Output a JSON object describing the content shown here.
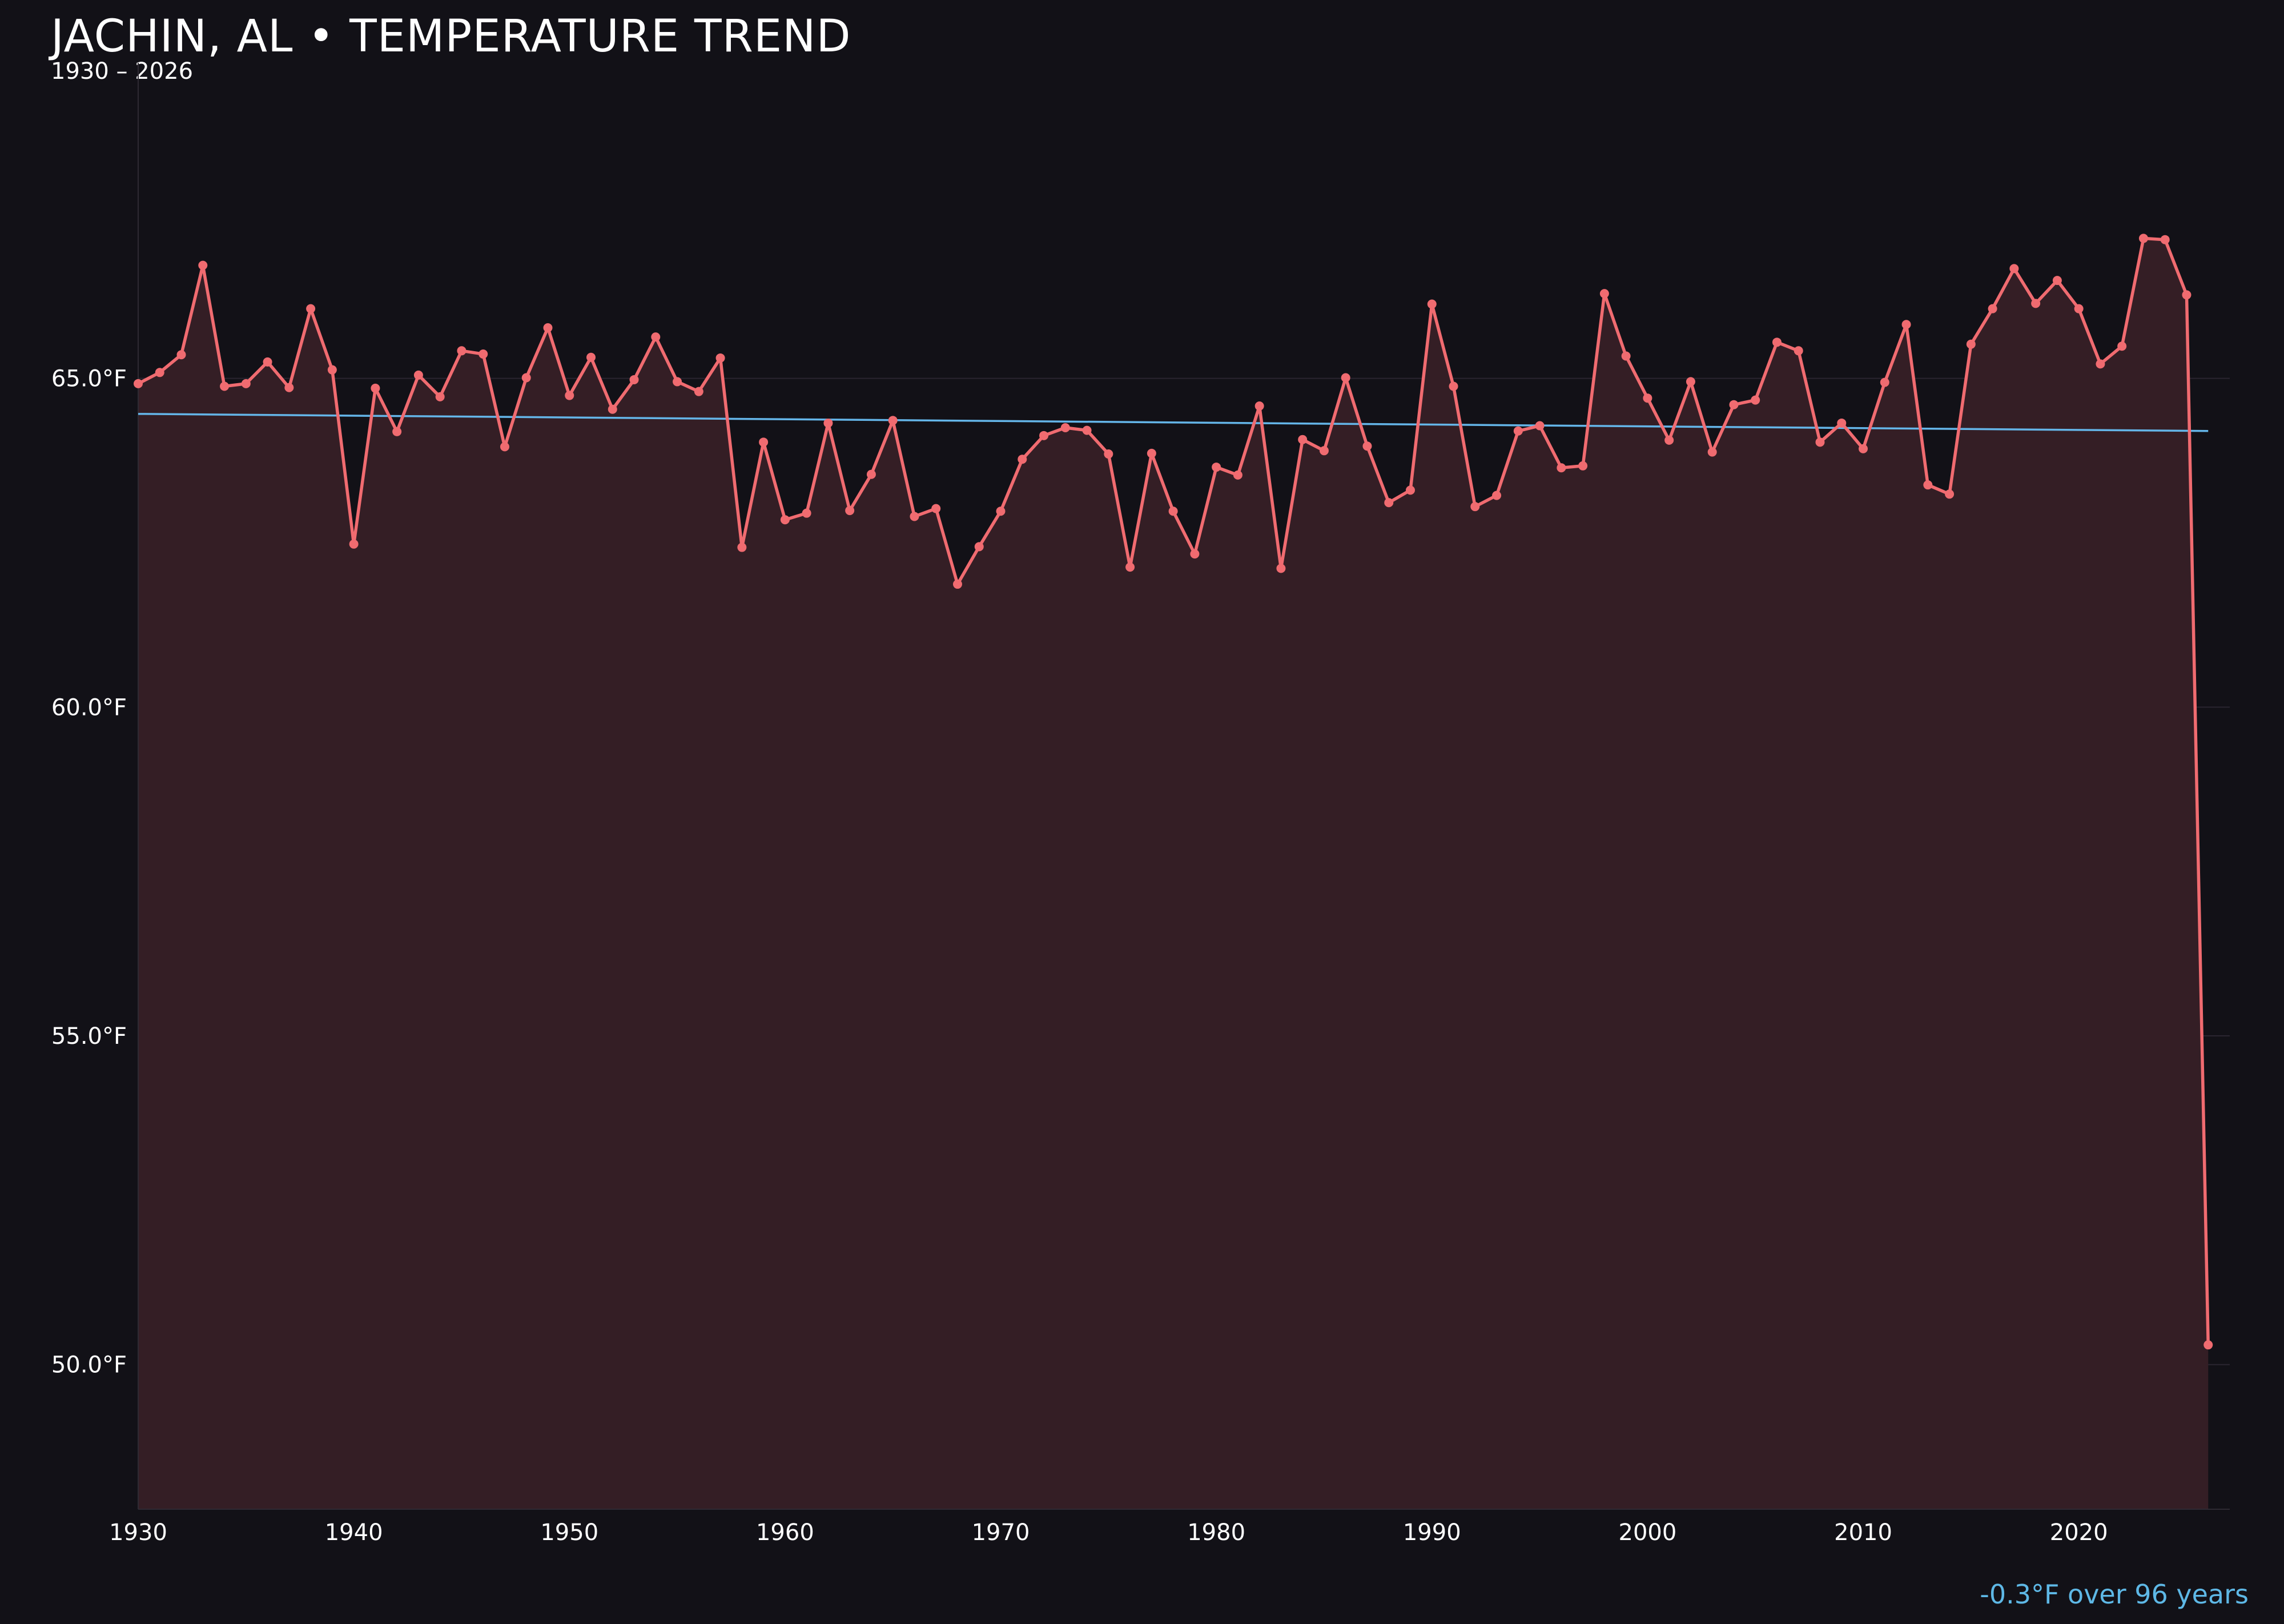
{
  "header": {
    "title": "JACHIN, AL • TEMPERATURE TREND",
    "subtitle": "1930 – 2026"
  },
  "footer": {
    "trend_note": "-0.3°F over 96 years"
  },
  "colors": {
    "background": "#121117",
    "series_line": "#f06b70",
    "series_fill": "#341e25",
    "trend_line": "#64b5e8",
    "trend_text": "#5eb8e6",
    "grid": "#2a2530"
  },
  "chart_data": {
    "type": "line",
    "xlim": [
      1930,
      2027
    ],
    "ylim": [
      47.8,
      69.8
    ],
    "x_ticks": [
      1930,
      1940,
      1950,
      1960,
      1970,
      1980,
      1990,
      2000,
      2010,
      2020
    ],
    "x_tick_labels": [
      "1930",
      "1940",
      "1950",
      "1960",
      "1970",
      "1980",
      "1990",
      "2000",
      "2010",
      "2020"
    ],
    "y_ticks": [
      50,
      55,
      60,
      65
    ],
    "y_tick_labels": [
      "50.0°F",
      "55.0°F",
      "60.0°F",
      "65.0°F"
    ],
    "grid": true,
    "x": [
      1930,
      1931,
      1932,
      1933,
      1934,
      1935,
      1936,
      1937,
      1938,
      1939,
      1940,
      1941,
      1942,
      1943,
      1944,
      1945,
      1946,
      1947,
      1948,
      1949,
      1950,
      1951,
      1952,
      1953,
      1954,
      1955,
      1956,
      1957,
      1958,
      1959,
      1960,
      1961,
      1962,
      1963,
      1964,
      1965,
      1966,
      1967,
      1968,
      1969,
      1970,
      1971,
      1972,
      1973,
      1974,
      1975,
      1976,
      1977,
      1978,
      1979,
      1980,
      1981,
      1982,
      1983,
      1984,
      1985,
      1986,
      1987,
      1988,
      1989,
      1990,
      1991,
      1992,
      1993,
      1994,
      1995,
      1996,
      1997,
      1998,
      1999,
      2000,
      2001,
      2002,
      2003,
      2004,
      2005,
      2006,
      2007,
      2008,
      2009,
      2010,
      2011,
      2012,
      2013,
      2014,
      2015,
      2016,
      2017,
      2018,
      2019,
      2020,
      2021,
      2022,
      2023,
      2024,
      2025,
      2026
    ],
    "series": [
      {
        "values": [
          64.92,
          65.09,
          65.36,
          66.72,
          64.88,
          64.92,
          65.25,
          64.86,
          66.06,
          65.13,
          62.48,
          64.85,
          64.19,
          65.05,
          64.72,
          65.42,
          65.37,
          63.96,
          65.01,
          65.77,
          64.74,
          65.32,
          64.53,
          64.98,
          65.63,
          64.95,
          64.8,
          65.31,
          62.43,
          64.03,
          62.85,
          62.95,
          64.32,
          62.99,
          63.54,
          64.36,
          62.9,
          63.02,
          61.87,
          62.44,
          62.98,
          63.77,
          64.13,
          64.25,
          64.21,
          63.85,
          62.13,
          63.86,
          62.98,
          62.33,
          63.65,
          63.53,
          64.58,
          62.11,
          64.07,
          63.9,
          65.01,
          63.97,
          63.11,
          63.3,
          66.13,
          64.88,
          63.05,
          63.22,
          64.2,
          64.28,
          63.64,
          63.67,
          66.29,
          65.34,
          64.7,
          64.06,
          64.95,
          63.88,
          64.6,
          64.67,
          65.55,
          65.42,
          64.03,
          64.32,
          63.93,
          64.94,
          65.82,
          63.38,
          63.24,
          65.52,
          66.06,
          66.67,
          66.14,
          66.49,
          66.06,
          65.22,
          65.49,
          67.13,
          67.11,
          66.27,
          50.3
        ]
      }
    ],
    "trend": {
      "x": [
        1930,
        2026
      ],
      "y": [
        64.46,
        64.2
      ]
    }
  }
}
